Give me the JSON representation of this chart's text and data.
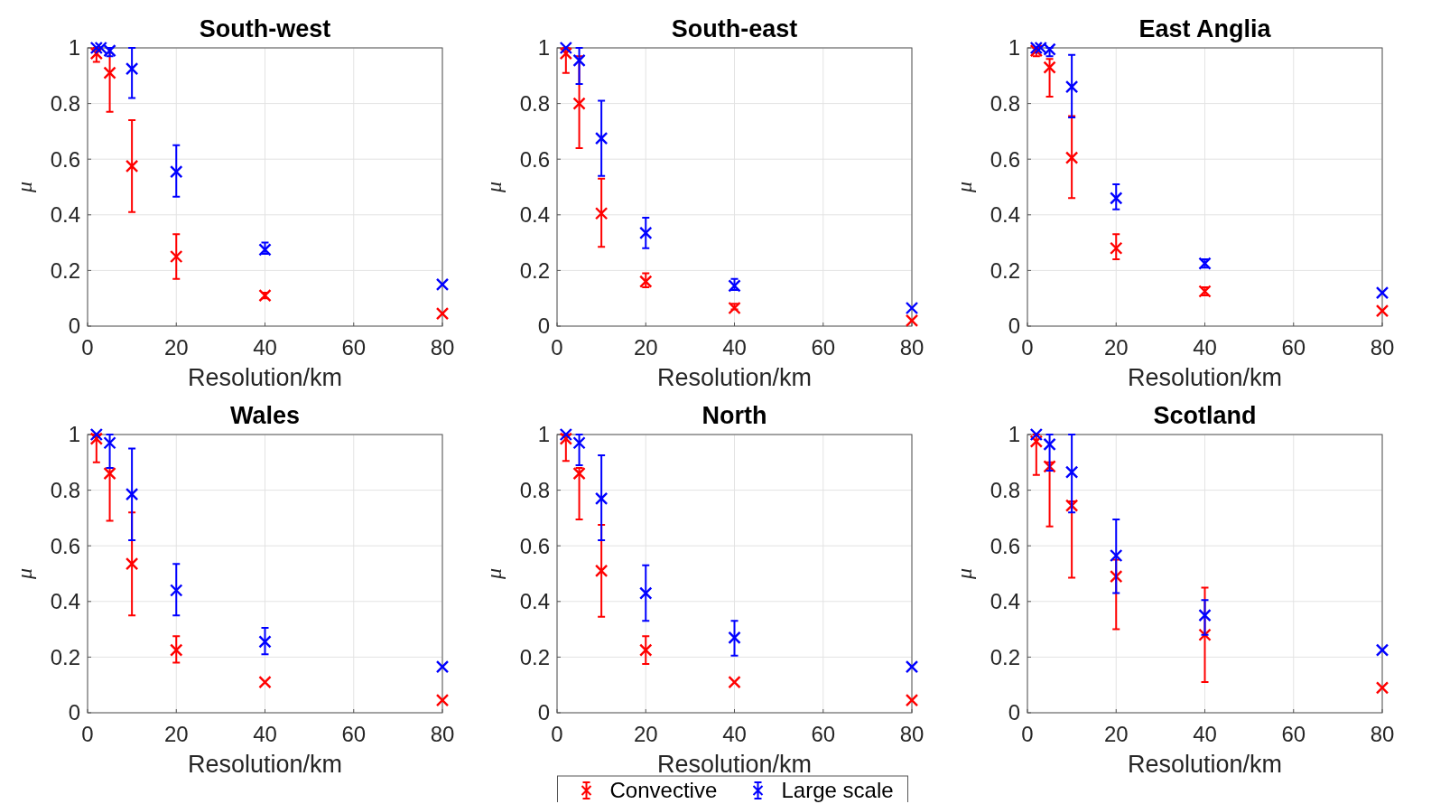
{
  "chart_data": [
    {
      "type": "scatter",
      "title": "South-west",
      "xlabel": "Resolution/km",
      "ylabel": "μ",
      "xlim": [
        0,
        80
      ],
      "ylim": [
        0,
        1
      ],
      "xticks": [
        0,
        20,
        40,
        60,
        80
      ],
      "yticks": [
        0,
        0.2,
        0.4,
        0.6,
        0.8,
        1
      ],
      "grid": true,
      "marker": "cross",
      "legend": false,
      "series": [
        {
          "color": "#ff0000",
          "x": [
            2,
            5,
            10,
            20,
            40,
            80
          ],
          "values": [
            0.98,
            0.91,
            0.575,
            0.25,
            0.11,
            0.045
          ],
          "errors": [
            [
              0.95,
              1.0
            ],
            [
              0.77,
              1.0
            ],
            [
              0.41,
              0.74
            ],
            [
              0.17,
              0.33
            ],
            [
              0.1,
              0.12
            ],
            null
          ]
        },
        {
          "color": "#0000ff",
          "x": [
            2,
            3,
            5,
            10,
            20,
            40,
            80
          ],
          "values": [
            1.0,
            1.0,
            0.99,
            0.925,
            0.555,
            0.275,
            0.15
          ],
          "errors": [
            null,
            null,
            [
              0.97,
              1.0
            ],
            [
              0.82,
              1.0
            ],
            [
              0.465,
              0.65
            ],
            [
              0.26,
              0.3
            ],
            null
          ]
        }
      ]
    },
    {
      "type": "scatter",
      "title": "South-east",
      "xlabel": "Resolution/km",
      "ylabel": "μ",
      "xlim": [
        0,
        80
      ],
      "ylim": [
        0,
        1
      ],
      "xticks": [
        0,
        20,
        40,
        60,
        80
      ],
      "yticks": [
        0,
        0.2,
        0.4,
        0.6,
        0.8,
        1
      ],
      "grid": true,
      "marker": "cross",
      "legend": false,
      "series": [
        {
          "color": "#ff0000",
          "x": [
            2,
            5,
            10,
            20,
            40,
            80
          ],
          "values": [
            0.98,
            0.8,
            0.405,
            0.16,
            0.065,
            0.02
          ],
          "errors": [
            [
              0.91,
              1.0
            ],
            [
              0.64,
              0.97
            ],
            [
              0.285,
              0.53
            ],
            [
              0.14,
              0.19
            ],
            [
              0.06,
              0.08
            ],
            null
          ]
        },
        {
          "color": "#0000ff",
          "x": [
            2,
            5,
            10,
            20,
            40,
            80
          ],
          "values": [
            1.0,
            0.955,
            0.675,
            0.335,
            0.145,
            0.065
          ],
          "errors": [
            null,
            [
              0.87,
              1.0
            ],
            [
              0.54,
              0.81
            ],
            [
              0.28,
              0.39
            ],
            [
              0.13,
              0.17
            ],
            null
          ]
        }
      ]
    },
    {
      "type": "scatter",
      "title": "East Anglia",
      "xlabel": "Resolution/km",
      "ylabel": "μ",
      "xlim": [
        0,
        80
      ],
      "ylim": [
        0,
        1
      ],
      "xticks": [
        0,
        20,
        40,
        60,
        80
      ],
      "yticks": [
        0,
        0.2,
        0.4,
        0.6,
        0.8,
        1
      ],
      "grid": true,
      "marker": "cross",
      "legend": false,
      "series": [
        {
          "color": "#ff0000",
          "x": [
            2,
            5,
            10,
            20,
            40,
            80
          ],
          "values": [
            0.99,
            0.93,
            0.605,
            0.28,
            0.125,
            0.055
          ],
          "errors": [
            [
              0.97,
              1.0
            ],
            [
              0.825,
              0.96
            ],
            [
              0.46,
              0.755
            ],
            [
              0.24,
              0.33
            ],
            [
              0.11,
              0.14
            ],
            null
          ]
        },
        {
          "color": "#0000ff",
          "x": [
            2,
            3,
            5,
            10,
            20,
            40,
            80
          ],
          "values": [
            1.0,
            1.0,
            0.995,
            0.86,
            0.46,
            0.225,
            0.12
          ],
          "errors": [
            null,
            null,
            [
              0.97,
              1.0
            ],
            [
              0.75,
              0.975
            ],
            [
              0.42,
              0.51
            ],
            [
              0.21,
              0.24
            ],
            null
          ]
        }
      ]
    },
    {
      "type": "scatter",
      "title": "Wales",
      "xlabel": "Resolution/km",
      "ylabel": "μ",
      "xlim": [
        0,
        80
      ],
      "ylim": [
        0,
        1
      ],
      "xticks": [
        0,
        20,
        40,
        60,
        80
      ],
      "yticks": [
        0,
        0.2,
        0.4,
        0.6,
        0.8,
        1
      ],
      "grid": true,
      "marker": "cross",
      "legend": false,
      "series": [
        {
          "color": "#ff0000",
          "x": [
            2,
            5,
            10,
            20,
            40,
            80
          ],
          "values": [
            0.985,
            0.86,
            0.535,
            0.225,
            0.11,
            0.045
          ],
          "errors": [
            [
              0.9,
              1.0
            ],
            [
              0.69,
              0.88
            ],
            [
              0.35,
              0.72
            ],
            [
              0.18,
              0.275
            ],
            null,
            null
          ]
        },
        {
          "color": "#0000ff",
          "x": [
            2,
            5,
            10,
            20,
            40,
            80
          ],
          "values": [
            1.0,
            0.97,
            0.785,
            0.44,
            0.255,
            0.165
          ],
          "errors": [
            null,
            [
              0.88,
              1.0
            ],
            [
              0.62,
              0.95
            ],
            [
              0.35,
              0.535
            ],
            [
              0.21,
              0.305
            ],
            null
          ]
        }
      ]
    },
    {
      "type": "scatter",
      "title": "North",
      "xlabel": "Resolution/km",
      "ylabel": "μ",
      "xlim": [
        0,
        80
      ],
      "ylim": [
        0,
        1
      ],
      "xticks": [
        0,
        20,
        40,
        60,
        80
      ],
      "yticks": [
        0,
        0.2,
        0.4,
        0.6,
        0.8,
        1
      ],
      "grid": true,
      "marker": "cross",
      "legend": "bottom",
      "series": [
        {
          "name": "Convective",
          "color": "#ff0000",
          "x": [
            2,
            5,
            10,
            20,
            40,
            80
          ],
          "values": [
            0.985,
            0.86,
            0.51,
            0.225,
            0.11,
            0.045
          ],
          "errors": [
            [
              0.905,
              1.0
            ],
            [
              0.695,
              0.88
            ],
            [
              0.345,
              0.675
            ],
            [
              0.175,
              0.275
            ],
            null,
            null
          ]
        },
        {
          "name": "Large scale",
          "color": "#0000ff",
          "x": [
            2,
            5,
            10,
            20,
            40,
            80
          ],
          "values": [
            1.0,
            0.97,
            0.77,
            0.43,
            0.27,
            0.165
          ],
          "errors": [
            null,
            [
              0.89,
              1.0
            ],
            [
              0.62,
              0.925
            ],
            [
              0.33,
              0.53
            ],
            [
              0.205,
              0.33
            ],
            null
          ]
        }
      ]
    },
    {
      "type": "scatter",
      "title": "Scotland",
      "xlabel": "Resolution/km",
      "ylabel": "μ",
      "xlim": [
        0,
        80
      ],
      "ylim": [
        0,
        1
      ],
      "xticks": [
        0,
        20,
        40,
        60,
        80
      ],
      "yticks": [
        0,
        0.2,
        0.4,
        0.6,
        0.8,
        1
      ],
      "grid": true,
      "marker": "cross",
      "legend": false,
      "series": [
        {
          "color": "#ff0000",
          "x": [
            2,
            5,
            10,
            20,
            40,
            80
          ],
          "values": [
            0.975,
            0.885,
            0.745,
            0.49,
            0.28,
            0.09
          ],
          "errors": [
            [
              0.855,
              1.0
            ],
            [
              0.67,
              0.9
            ],
            [
              0.485,
              0.76
            ],
            [
              0.3,
              0.55
            ],
            [
              0.11,
              0.45
            ],
            null
          ]
        },
        {
          "color": "#0000ff",
          "x": [
            2,
            5,
            10,
            20,
            40,
            80
          ],
          "values": [
            1.0,
            0.965,
            0.865,
            0.565,
            0.35,
            0.225
          ],
          "errors": [
            null,
            [
              0.87,
              1.0
            ],
            [
              0.72,
              1.0
            ],
            [
              0.43,
              0.695
            ],
            [
              0.28,
              0.405
            ],
            null
          ]
        }
      ]
    }
  ]
}
